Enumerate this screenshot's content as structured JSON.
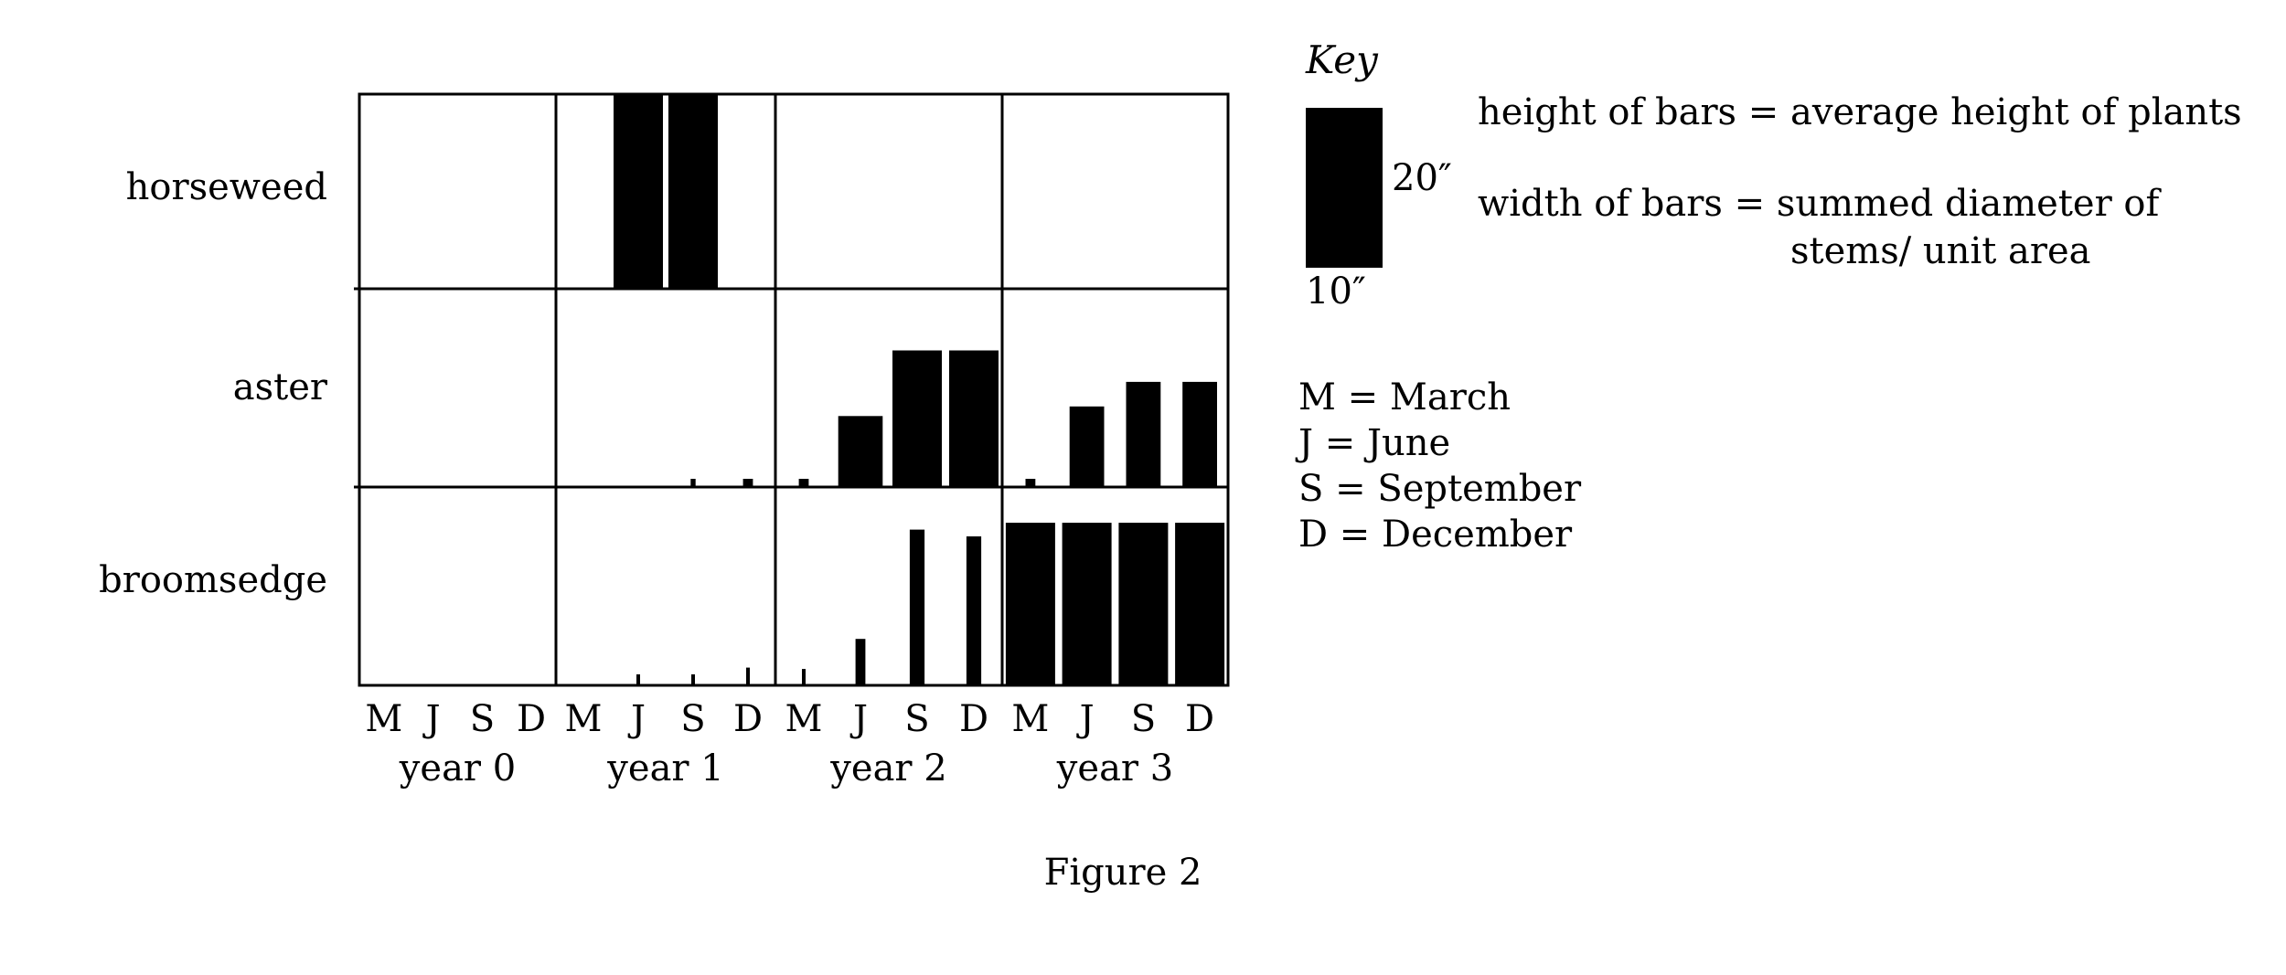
{
  "chart_data": {
    "type": "bar",
    "caption": "Figure 2",
    "rows": [
      "horseweed",
      "aster",
      "broomsedge"
    ],
    "years": [
      "year 0",
      "year 1",
      "year 2",
      "year 3"
    ],
    "months": [
      "M",
      "J",
      "S",
      "D"
    ],
    "value_units": "inches (average height of plants)",
    "series": [
      {
        "name": "horseweed",
        "values": [
          [
            0,
            0,
            0,
            0
          ],
          [
            0,
            15,
            20.5,
            0
          ],
          [
            0,
            0,
            0,
            0
          ],
          [
            0,
            0,
            0,
            0
          ]
        ],
        "widths": [
          [
            0,
            0,
            0,
            0
          ],
          [
            0,
            1.0,
            1.0,
            0
          ],
          [
            0,
            0,
            0,
            0
          ],
          [
            0,
            0,
            0,
            0
          ]
        ]
      },
      {
        "name": "aster",
        "values": [
          [
            0,
            0,
            0,
            0
          ],
          [
            0,
            0,
            0.6,
            0.6
          ],
          [
            0.6,
            5.2,
            10.0,
            10.0
          ],
          [
            0.6,
            5.9,
            7.7,
            7.7
          ]
        ],
        "widths": [
          [
            0,
            0,
            0,
            0
          ],
          [
            0,
            0,
            0.1,
            0.2
          ],
          [
            0.2,
            0.9,
            1.0,
            1.0
          ],
          [
            0.2,
            0.7,
            0.7,
            0.7
          ]
        ]
      },
      {
        "name": "broomsedge",
        "values": [
          [
            0,
            0,
            0,
            0
          ],
          [
            0,
            0.8,
            0.8,
            1.3
          ],
          [
            1.2,
            3.4,
            11.4,
            10.9
          ],
          [
            11.9,
            11.9,
            11.9,
            11.9
          ]
        ],
        "widths": [
          [
            0,
            0,
            0,
            0
          ],
          [
            0,
            0.05,
            0.05,
            0.05
          ],
          [
            0.05,
            0.2,
            0.3,
            0.3
          ],
          [
            1.0,
            1.0,
            1.0,
            1.0
          ]
        ]
      }
    ]
  },
  "key": {
    "title": "Key",
    "top_label": "20″",
    "bottom_label": "10″",
    "height_desc": "height of bars = average height of plants",
    "width_desc_line1": "width of bars = summed diameter of",
    "width_desc_line2": "stems/ unit area",
    "months": [
      "M  = March",
      "J  = June",
      "S  = September",
      "D  = December"
    ]
  }
}
